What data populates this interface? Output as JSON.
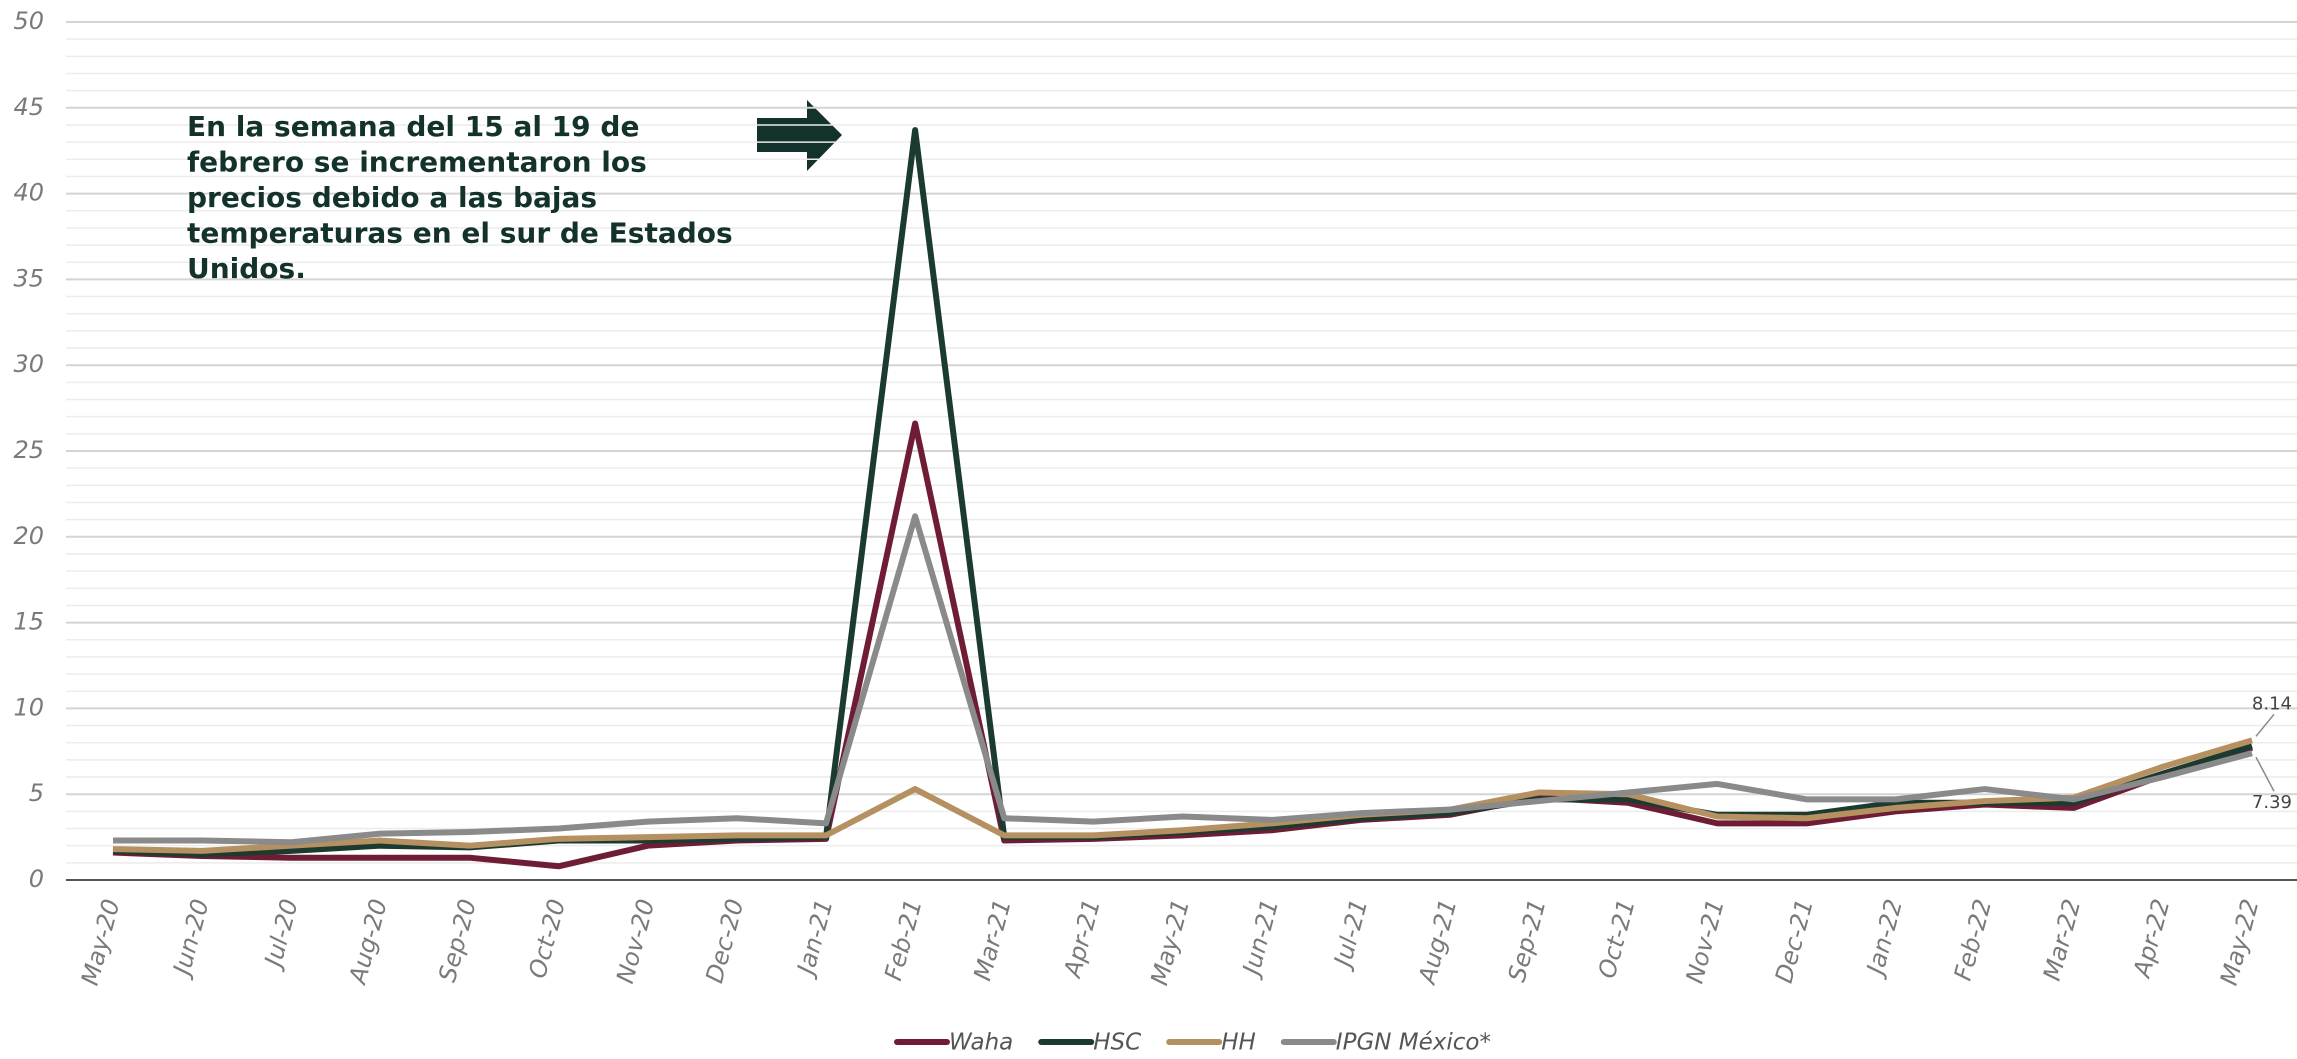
{
  "chart_data": {
    "type": "line",
    "categories": [
      "May-20",
      "Jun-20",
      "Jul-20",
      "Aug-20",
      "Sep-20",
      "Oct-20",
      "Nov-20",
      "Dec-20",
      "Jan-21",
      "Feb-21",
      "Mar-21",
      "Apr-21",
      "May-21",
      "Jun-21",
      "Jul-21",
      "Aug-21",
      "Sep-21",
      "Oct-21",
      "Nov-21",
      "Dec-21",
      "Jan-22",
      "Feb-22",
      "Mar-22",
      "Apr-22",
      "May-22"
    ],
    "series": [
      {
        "name": "Waha",
        "color": "#6f1d35",
        "values": [
          1.6,
          1.4,
          1.3,
          1.3,
          1.3,
          0.8,
          2.0,
          2.3,
          2.4,
          26.6,
          2.3,
          2.4,
          2.6,
          2.9,
          3.5,
          3.8,
          4.8,
          4.5,
          3.3,
          3.3,
          4.0,
          4.4,
          4.2,
          6.1,
          7.7
        ]
      },
      {
        "name": "HSC",
        "color": "#1b3a30",
        "values": [
          1.7,
          1.5,
          1.7,
          2.0,
          1.9,
          2.3,
          2.3,
          2.4,
          2.5,
          43.7,
          2.5,
          2.5,
          2.8,
          3.1,
          3.6,
          3.9,
          4.7,
          4.7,
          3.8,
          3.8,
          4.5,
          4.5,
          4.5,
          6.2,
          7.8
        ]
      },
      {
        "name": "HH",
        "color": "#b59060",
        "values": [
          1.8,
          1.7,
          2.0,
          2.3,
          2.0,
          2.4,
          2.5,
          2.6,
          2.6,
          5.3,
          2.6,
          2.6,
          2.9,
          3.3,
          3.8,
          4.1,
          5.1,
          5.0,
          3.7,
          3.6,
          4.2,
          4.6,
          4.8,
          6.6,
          8.14
        ],
        "value_labels": [
          null,
          null,
          null,
          null,
          null,
          null,
          null,
          null,
          null,
          null,
          null,
          null,
          null,
          null,
          null,
          null,
          null,
          null,
          null,
          null,
          null,
          null,
          null,
          null,
          "8.14"
        ]
      },
      {
        "name": "IPGN México*",
        "color": "#8a8a8a",
        "values": [
          2.3,
          2.3,
          2.2,
          2.7,
          2.8,
          3.0,
          3.4,
          3.6,
          3.3,
          21.2,
          3.6,
          3.4,
          3.7,
          3.5,
          3.9,
          4.1,
          4.6,
          5.1,
          5.6,
          4.7,
          4.7,
          5.3,
          4.7,
          6.0,
          7.39
        ],
        "value_labels": [
          null,
          null,
          null,
          null,
          null,
          null,
          null,
          null,
          null,
          null,
          null,
          null,
          null,
          null,
          null,
          null,
          null,
          null,
          null,
          null,
          null,
          null,
          null,
          null,
          "7.39"
        ]
      }
    ],
    "ylim": [
      0,
      50
    ],
    "yticks": [
      0,
      5,
      10,
      15,
      20,
      25,
      30,
      35,
      40,
      45,
      50
    ],
    "grid": true,
    "legend": "bottom",
    "annotation": [
      "En la semana del 15 al 19 de",
      "febrero se incrementaron los",
      "precios debido a las bajas",
      "temperaturas en el sur de Estados",
      "Unidos."
    ]
  }
}
